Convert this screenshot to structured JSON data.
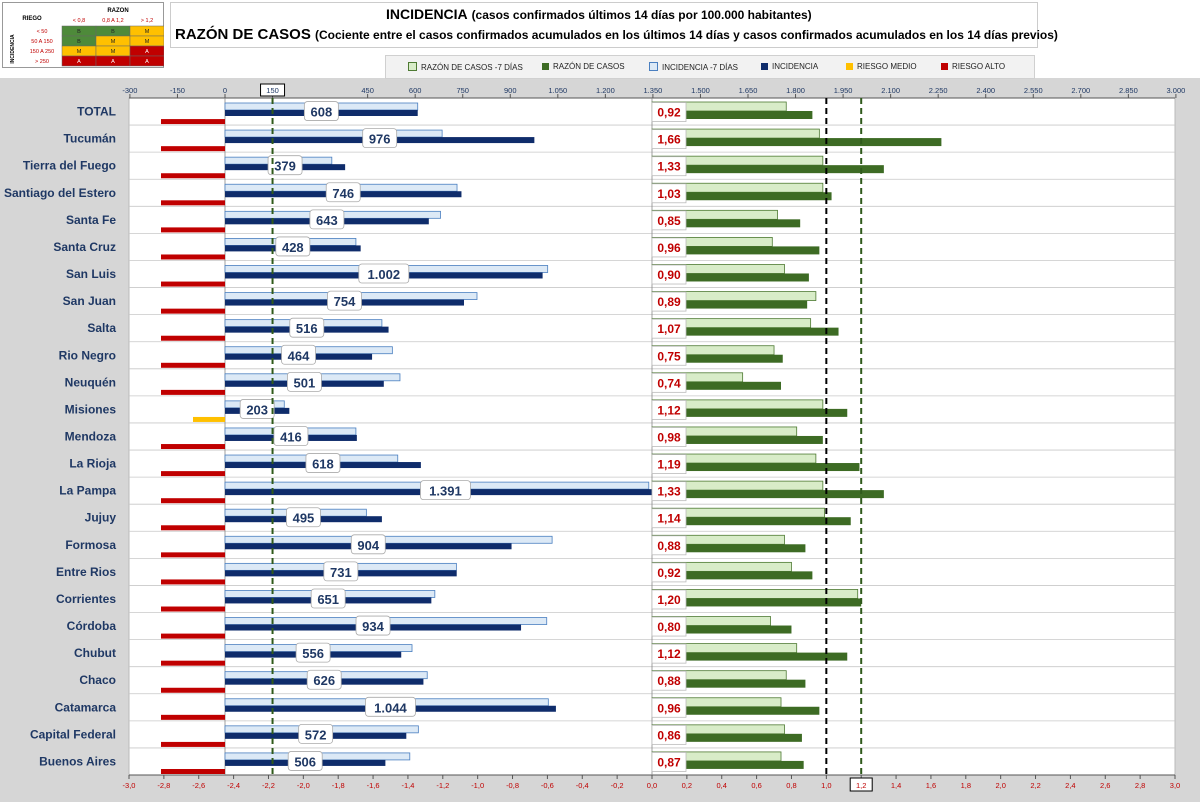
{
  "title": {
    "line1_main": "INCIDENCIA",
    "line1_sub": "(casos confirmados últimos 14 días por 100.000 habitantes)",
    "line2_main": "RAZÓN DE CASOS",
    "line2_sub": "(Cociente entre el casos confirmados acumulados en los últimos 14 días y casos confirmados acumulados en los 14 días previos)"
  },
  "risk_table": {
    "riego": "RIEGO",
    "razon": "RAZON",
    "incidencia": "INCIDENCIA",
    "col_headers": [
      "< 0,8",
      "0,8 A 1,2",
      "> 1,2"
    ],
    "row_headers": [
      "< 50",
      "50 A 150",
      "150 A 250",
      "> 250"
    ],
    "cells": [
      [
        "B",
        "B",
        "M"
      ],
      [
        "B",
        "M",
        "M"
      ],
      [
        "M",
        "M",
        "A"
      ],
      [
        "A",
        "A",
        "A"
      ]
    ],
    "colors": {
      "B": "#4e8a3a",
      "M": "#ffc000",
      "A": "#c00000"
    }
  },
  "legend": [
    {
      "label": "RAZÓN DE CASOS -7 DÍAS",
      "color": "#d8ecc8",
      "border": "#4e7a33"
    },
    {
      "label": "RAZÓN DE CASOS",
      "color": "#3d6b24",
      "border": "#3d6b24"
    },
    {
      "label": "INCIDENCIA -7 DÍAS",
      "color": "#dce9f6",
      "border": "#4a7fc0"
    },
    {
      "label": "INCIDENCIA",
      "color": "#0f2c6b",
      "border": "#0f2c6b"
    },
    {
      "label": "RIESGO MEDIO",
      "color": "#ffc000",
      "border": "#ffc000"
    },
    {
      "label": "RIESGO ALTO",
      "color": "#c00000",
      "border": "#c00000"
    }
  ],
  "chart_data": {
    "type": "bar",
    "orientation": "horizontal",
    "categories": [
      "TOTAL",
      "Tucumán",
      "Tierra del Fuego",
      "Santiago del Estero",
      "Santa Fe",
      "Santa Cruz",
      "San Luis",
      "San Juan",
      "Salta",
      "Rio Negro",
      "Neuquén",
      "Misiones",
      "Mendoza",
      "La Rioja",
      "La Pampa",
      "Jujuy",
      "Formosa",
      "Entre Rios",
      "Corrientes",
      "Córdoba",
      "Chubut",
      "Chaco",
      "Catamarca",
      "Capital Federal",
      "Buenos Aires"
    ],
    "series": [
      {
        "name": "INCIDENCIA -7 DÍAS",
        "values": [
          608,
          685,
          337,
          732,
          680,
          413,
          1018,
          795,
          495,
          528,
          552,
          187,
          413,
          545,
          1337,
          446,
          1032,
          730,
          662,
          1015,
          590,
          638,
          1020,
          610,
          583
        ]
      },
      {
        "name": "INCIDENCIA",
        "values": [
          608,
          976,
          379,
          746,
          643,
          428,
          1002,
          754,
          516,
          464,
          501,
          203,
          416,
          618,
          1391,
          495,
          904,
          731,
          651,
          934,
          556,
          626,
          1044,
          572,
          506
        ]
      },
      {
        "name": "RAZÓN DE CASOS -7 DÍAS",
        "values": [
          0.77,
          0.96,
          0.98,
          0.98,
          0.72,
          0.69,
          0.76,
          0.94,
          0.91,
          0.7,
          0.52,
          0.98,
          0.83,
          0.94,
          0.98,
          0.99,
          0.76,
          0.8,
          1.18,
          0.68,
          0.83,
          0.77,
          0.74,
          0.76,
          0.74
        ]
      },
      {
        "name": "RAZÓN DE CASOS",
        "values": [
          0.92,
          1.66,
          1.33,
          1.03,
          0.85,
          0.96,
          0.9,
          0.89,
          1.07,
          0.75,
          0.74,
          1.12,
          0.98,
          1.19,
          1.33,
          1.14,
          0.88,
          0.92,
          1.2,
          0.8,
          1.12,
          0.88,
          0.96,
          0.86,
          0.87
        ]
      }
    ],
    "incidence_labels": [
      "608",
      "976",
      "379",
      "746",
      "643",
      "428",
      "1.002",
      "754",
      "516",
      "464",
      "501",
      "203",
      "416",
      "618",
      "1.391",
      "495",
      "904",
      "731",
      "651",
      "934",
      "556",
      "626",
      "1.044",
      "572",
      "506"
    ],
    "ratio_labels": [
      "0,92",
      "1,66",
      "1,33",
      "1,03",
      "0,85",
      "0,96",
      "0,90",
      "0,89",
      "1,07",
      "0,75",
      "0,74",
      "1,12",
      "0,98",
      "1,19",
      "1,33",
      "1,14",
      "0,88",
      "0,92",
      "1,20",
      "0,80",
      "1,12",
      "0,88",
      "0,96",
      "0,86",
      "0,87"
    ],
    "risk": [
      "ALTO",
      "ALTO",
      "ALTO",
      "ALTO",
      "ALTO",
      "ALTO",
      "ALTO",
      "ALTO",
      "ALTO",
      "ALTO",
      "ALTO",
      "MEDIO",
      "ALTO",
      "ALTO",
      "ALTO",
      "ALTO",
      "ALTO",
      "ALTO",
      "ALTO",
      "ALTO",
      "ALTO",
      "ALTO",
      "ALTO",
      "ALTO",
      "ALTO"
    ],
    "top_axis": {
      "range": [
        -300,
        3000
      ],
      "ticks": [
        "-300",
        "-150",
        "0",
        "150",
        "450",
        "600",
        "750",
        "900",
        "1.050",
        "1.200",
        "1.350",
        "1.500",
        "1.650",
        "1.800",
        "1.950",
        "2.100",
        "2.250",
        "2.400",
        "2.550",
        "2.700",
        "2.850",
        "3.000"
      ],
      "tick_values": [
        -300,
        -150,
        0,
        150,
        450,
        600,
        750,
        900,
        1050,
        1200,
        1350,
        1500,
        1650,
        1800,
        1950,
        2100,
        2250,
        2400,
        2550,
        2700,
        2850,
        3000
      ],
      "highlight": "150"
    },
    "bottom_axis": {
      "range": [
        -3.0,
        3.0
      ],
      "ticks": [
        "-3,0",
        "-2,8",
        "-2,6",
        "-2,4",
        "-2,2",
        "-2,0",
        "-1,8",
        "-1,6",
        "-1,4",
        "-1,2",
        "-1,0",
        "-0,8",
        "-0,6",
        "-0,4",
        "-0,2",
        "0,0",
        "0,2",
        "0,4",
        "0,6",
        "0,8",
        "1,0",
        "1,2",
        "1,4",
        "1,6",
        "1,8",
        "2,0",
        "2,2",
        "2,4",
        "2,6",
        "2,8",
        "3,0"
      ],
      "highlight": "1,2"
    },
    "reference_lines": {
      "incidence_threshold": 150,
      "ratio_one": 1.0,
      "ratio_threshold": 1.2
    }
  }
}
